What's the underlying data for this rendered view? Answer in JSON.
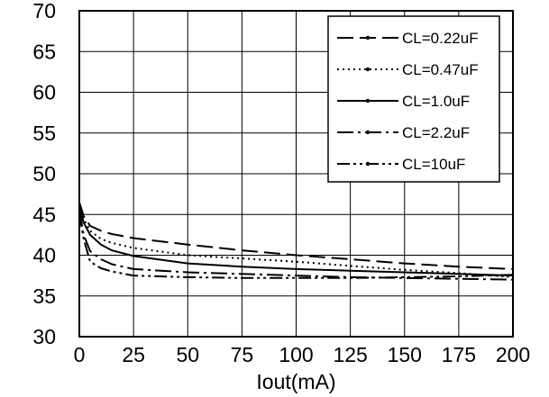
{
  "chart_data": {
    "type": "line",
    "title": "",
    "xlabel": "Iout(mA)",
    "ylabel": "",
    "xlim": [
      0,
      200
    ],
    "ylim": [
      30,
      70
    ],
    "x_ticks": [
      "0",
      "25",
      "50",
      "75",
      "100",
      "125",
      "150",
      "175",
      "200"
    ],
    "y_ticks": [
      "70",
      "65",
      "60",
      "55",
      "50",
      "45",
      "40",
      "35",
      "30"
    ],
    "grid": true,
    "legend_position": "top-right",
    "x": [
      0,
      2,
      5,
      10,
      15,
      25,
      50,
      75,
      100,
      125,
      150,
      175,
      200
    ],
    "series": [
      {
        "name": "CL=0.22uF",
        "dash": "18,7",
        "values": [
          46.5,
          44.8,
          43.6,
          43.0,
          42.6,
          42.1,
          41.3,
          40.6,
          40.0,
          39.5,
          39.0,
          38.6,
          38.3
        ]
      },
      {
        "name": "CL=0.47uF",
        "dash": "2,4",
        "values": [
          46.0,
          44.5,
          43.0,
          42.0,
          41.5,
          40.9,
          40.0,
          39.6,
          39.2,
          38.7,
          38.2,
          37.8,
          37.3
        ]
      },
      {
        "name": "CL=1.0uF",
        "dash": "",
        "values": [
          46.0,
          44.0,
          42.5,
          41.3,
          40.6,
          39.9,
          39.0,
          38.6,
          38.3,
          38.1,
          37.9,
          37.7,
          37.5
        ]
      },
      {
        "name": "CL=2.2uF",
        "dash": "18,5,3,5",
        "values": [
          45.5,
          42.5,
          40.5,
          39.5,
          38.9,
          38.3,
          37.9,
          37.7,
          37.5,
          37.3,
          37.2,
          37.1,
          37.0
        ]
      },
      {
        "name": "CL=10uF",
        "dash": "14,4,3,4,3,4",
        "values": [
          45.0,
          42.0,
          39.2,
          38.4,
          38.0,
          37.5,
          37.3,
          37.2,
          37.2,
          37.2,
          37.3,
          37.4,
          37.6
        ]
      }
    ]
  }
}
